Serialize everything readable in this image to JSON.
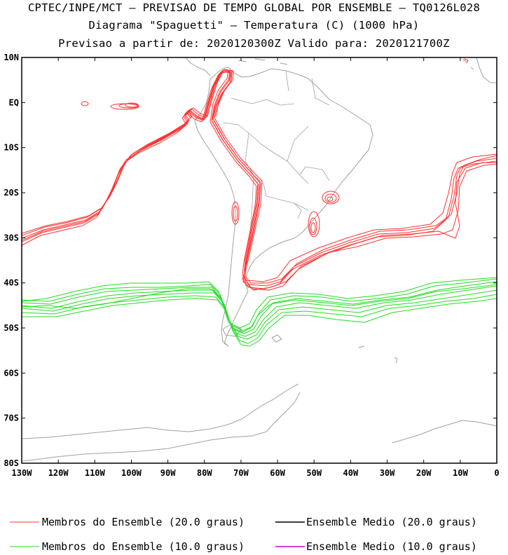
{
  "titles": {
    "line1": "CPTEC/INPE/MCT – PREVISAO DE TEMPO GLOBAL POR ENSEMBLE – TQ0126L028",
    "line2": "Diagrama \"Spaguetti\" – Temperatura (C) (1000 hPa)",
    "line3": "Previsao a partir de: 2020120300Z  Valido para: 2020121700Z"
  },
  "map": {
    "projection": "cylindrical equidistant",
    "lon_range": [
      -130,
      0
    ],
    "lat_range": [
      -80,
      10
    ],
    "lat_tick_labels": [
      "10N",
      "EQ",
      "10S",
      "20S",
      "30S",
      "40S",
      "50S",
      "60S",
      "70S",
      "80S"
    ],
    "lon_tick_labels": [
      "130W",
      "120W",
      "110W",
      "100W",
      "90W",
      "80W",
      "70W",
      "60W",
      "50W",
      "40W",
      "30W",
      "20W",
      "10W",
      "0"
    ],
    "coastline_color": "#a0a0a0",
    "contours": [
      {
        "name": "Membros do Ensemble (20.0 graus)",
        "color": "#ff3030",
        "level_c": 20.0
      },
      {
        "name": "Membros do Ensemble (10.0 graus)",
        "color": "#22dd22",
        "level_c": 10.0
      }
    ]
  },
  "legend": {
    "items": [
      {
        "label": "Membros do Ensemble (20.0 graus)",
        "color": "#ff3030"
      },
      {
        "label": "Ensemble Medio (20.0 graus)",
        "color": "#000000"
      },
      {
        "label": "Membros do Ensemble (10.0 graus)",
        "color": "#22dd22"
      },
      {
        "label": "Ensemble Medio (10.0 graus)",
        "color": "#cc00cc"
      }
    ]
  }
}
